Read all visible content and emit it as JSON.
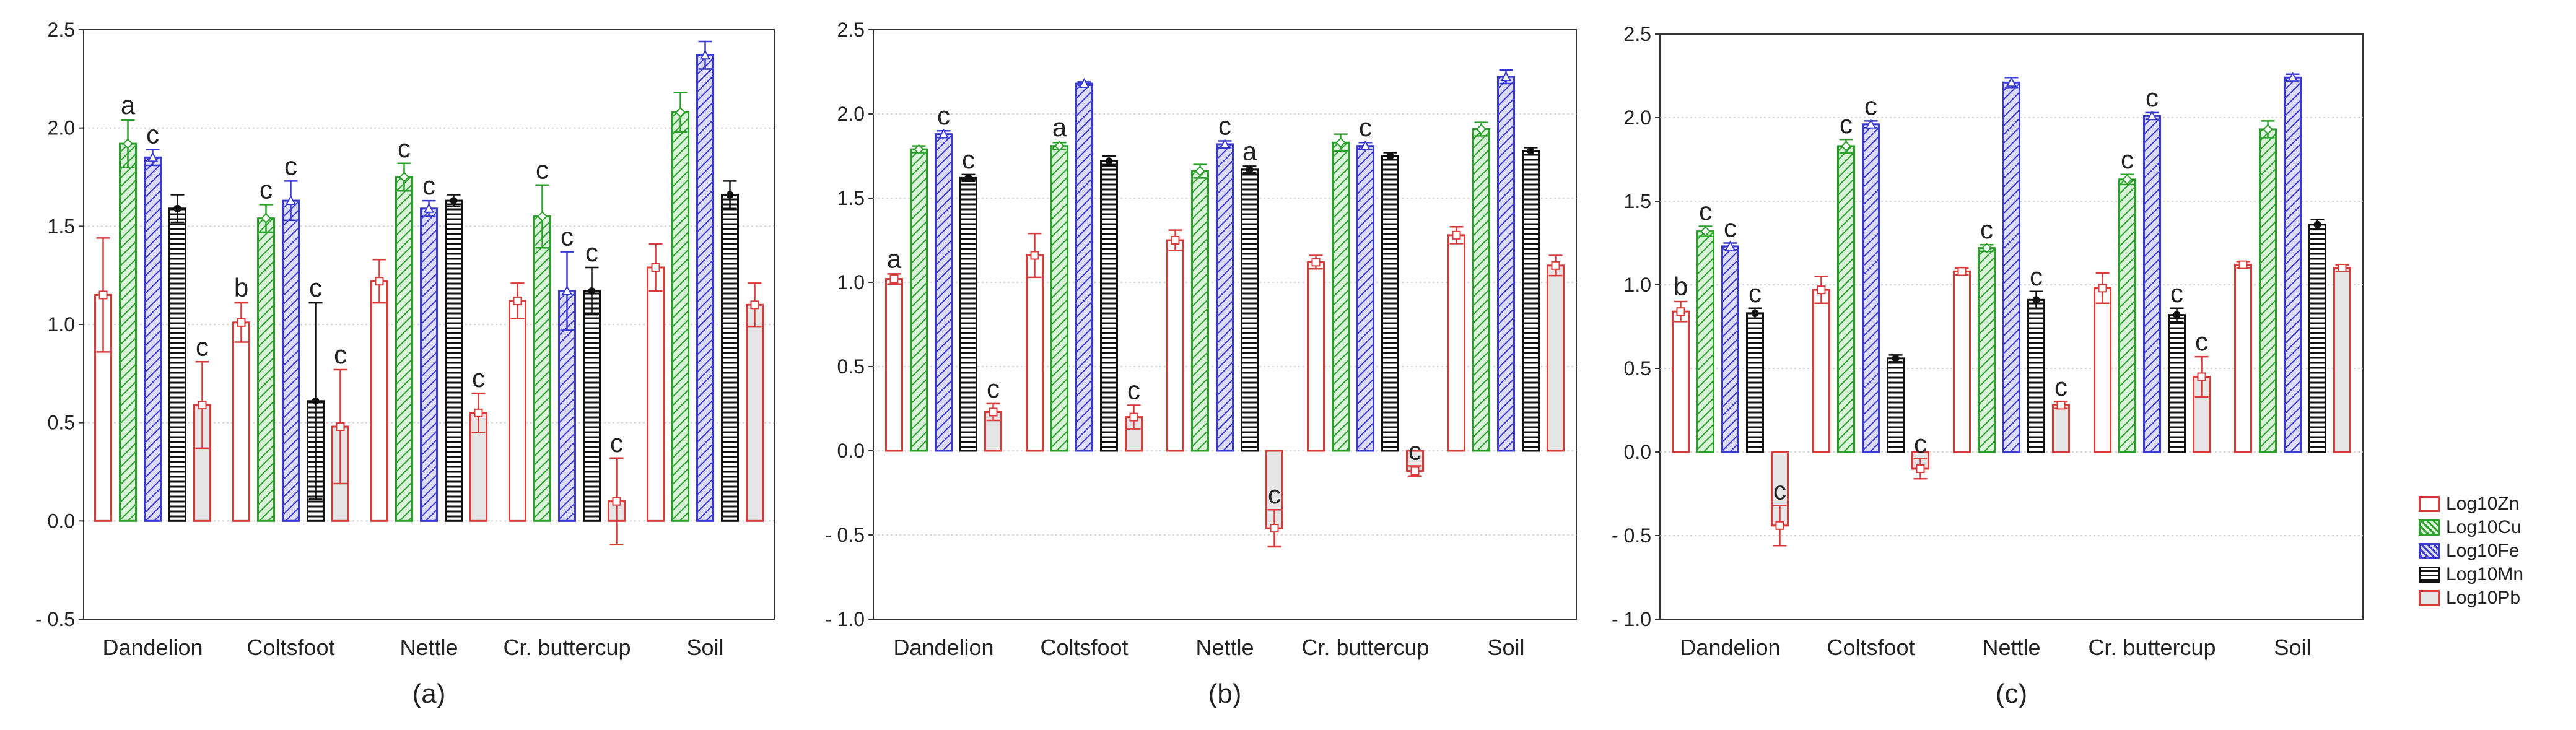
{
  "series_styles": [
    {
      "name": "Log10Zn",
      "stroke": "#d93a3a",
      "fill": "#ffffff",
      "pattern": "none",
      "marker": "square"
    },
    {
      "name": "Log10Cu",
      "stroke": "#2aa02a",
      "fill": "#2aa02a",
      "pattern": "diag",
      "marker": "diamond"
    },
    {
      "name": "Log10Fe",
      "stroke": "#3a3ad0",
      "fill": "#3a3ad0",
      "pattern": "diag",
      "marker": "triangle"
    },
    {
      "name": "Log10Mn",
      "stroke": "#111111",
      "fill": "#111111",
      "pattern": "horiz",
      "marker": "circle"
    },
    {
      "name": "Log10Pb",
      "stroke": "#d93a3a",
      "fill": "#e6e6e6",
      "pattern": "none",
      "marker": "square"
    }
  ],
  "legend": [
    "Log10Zn",
    "Log10Cu",
    "Log10Fe",
    "Log10Mn",
    "Log10Pb"
  ],
  "chart_data": [
    {
      "type": "bar",
      "panel_label": "(a)",
      "categories": [
        "Dandelion",
        "Coltsfoot",
        "Nettle",
        "Cr. buttercup",
        "Soil"
      ],
      "ylim": [
        -0.5,
        2.5
      ],
      "yticks": [
        -0.5,
        0.0,
        0.5,
        1.0,
        1.5,
        2.0,
        2.5
      ],
      "ytick_labels": [
        "- 0.5",
        "0.0",
        "0.5",
        "1.0",
        "1.5",
        "2.0",
        "2.5"
      ],
      "grid": true,
      "series": [
        {
          "name": "Log10Zn",
          "values": [
            1.15,
            1.01,
            1.22,
            1.12,
            1.29
          ],
          "errors": [
            0.29,
            0.1,
            0.11,
            0.09,
            0.12
          ],
          "labels": [
            "",
            "b",
            "",
            "",
            ""
          ]
        },
        {
          "name": "Log10Cu",
          "values": [
            1.92,
            1.54,
            1.75,
            1.55,
            2.08
          ],
          "errors": [
            0.12,
            0.07,
            0.07,
            0.16,
            0.1
          ],
          "labels": [
            "a",
            "c",
            "c",
            "c",
            ""
          ]
        },
        {
          "name": "Log10Fe",
          "values": [
            1.85,
            1.63,
            1.59,
            1.17,
            2.37
          ],
          "errors": [
            0.04,
            0.1,
            0.04,
            0.2,
            0.07
          ],
          "labels": [
            "c",
            "c",
            "c",
            "c",
            ""
          ]
        },
        {
          "name": "Log10Mn",
          "values": [
            1.59,
            0.61,
            1.63,
            1.17,
            1.66
          ],
          "errors": [
            0.07,
            0.5,
            0.03,
            0.12,
            0.07
          ],
          "labels": [
            "",
            "c",
            "",
            "c",
            ""
          ]
        },
        {
          "name": "Log10Pb",
          "values": [
            0.59,
            0.48,
            0.55,
            0.1,
            1.1
          ],
          "errors": [
            0.22,
            0.29,
            0.1,
            0.22,
            0.11
          ],
          "labels": [
            "c",
            "c",
            "c",
            "c",
            ""
          ]
        }
      ]
    },
    {
      "type": "bar",
      "panel_label": "(b)",
      "categories": [
        "Dandelion",
        "Coltsfoot",
        "Nettle",
        "Cr. buttercup",
        "Soil"
      ],
      "ylim": [
        -1.0,
        2.5
      ],
      "yticks": [
        -1.0,
        -0.5,
        0.0,
        0.5,
        1.0,
        1.5,
        2.0,
        2.5
      ],
      "ytick_labels": [
        "- 1.0",
        "- 0.5",
        "0.0",
        "0.5",
        "1.0",
        "1.5",
        "2.0",
        "2.5"
      ],
      "grid": true,
      "series": [
        {
          "name": "Log10Zn",
          "values": [
            1.02,
            1.16,
            1.25,
            1.12,
            1.28
          ],
          "errors": [
            0.03,
            0.13,
            0.06,
            0.04,
            0.05
          ],
          "labels": [
            "a",
            "",
            "",
            "",
            ""
          ]
        },
        {
          "name": "Log10Cu",
          "values": [
            1.79,
            1.81,
            1.66,
            1.83,
            1.91
          ],
          "errors": [
            0.02,
            0.02,
            0.04,
            0.05,
            0.04
          ],
          "labels": [
            "",
            "a",
            "",
            "",
            ""
          ]
        },
        {
          "name": "Log10Fe",
          "values": [
            1.88,
            2.18,
            1.82,
            1.81,
            2.22
          ],
          "errors": [
            0.02,
            0.01,
            0.02,
            0.02,
            0.04
          ],
          "labels": [
            "c",
            "",
            "c",
            "c",
            ""
          ]
        },
        {
          "name": "Log10Mn",
          "values": [
            1.62,
            1.72,
            1.67,
            1.75,
            1.78
          ],
          "errors": [
            0.02,
            0.03,
            0.02,
            0.02,
            0.02
          ],
          "labels": [
            "c",
            "",
            "a",
            "",
            ""
          ]
        },
        {
          "name": "Log10Pb",
          "values": [
            0.23,
            0.2,
            -0.46,
            -0.12,
            1.1
          ],
          "errors": [
            0.05,
            0.07,
            0.11,
            0.03,
            0.06
          ],
          "labels": [
            "c",
            "c",
            "c",
            "c",
            ""
          ]
        }
      ]
    },
    {
      "type": "bar",
      "panel_label": "(c)",
      "categories": [
        "Dandelion",
        "Coltsfoot",
        "Nettle",
        "Cr. buttercup",
        "Soil"
      ],
      "ylim": [
        -1.0,
        2.5
      ],
      "yticks": [
        -1.0,
        -0.5,
        0.0,
        0.5,
        1.0,
        1.5,
        2.0,
        2.5
      ],
      "ytick_labels": [
        "- 1.0",
        "- 0.5",
        "0.0",
        "0.5",
        "1.0",
        "1.5",
        "2.0",
        "2.5"
      ],
      "grid": true,
      "series": [
        {
          "name": "Log10Zn",
          "values": [
            0.84,
            0.97,
            1.08,
            0.98,
            1.12
          ],
          "errors": [
            0.06,
            0.08,
            0.02,
            0.09,
            0.02
          ],
          "labels": [
            "b",
            "",
            "",
            "",
            ""
          ]
        },
        {
          "name": "Log10Cu",
          "values": [
            1.32,
            1.83,
            1.22,
            1.63,
            1.93
          ],
          "errors": [
            0.03,
            0.04,
            0.02,
            0.03,
            0.05
          ],
          "labels": [
            "c",
            "c",
            "c",
            "c",
            ""
          ]
        },
        {
          "name": "Log10Fe",
          "values": [
            1.23,
            1.96,
            2.21,
            2.01,
            2.24
          ],
          "errors": [
            0.02,
            0.02,
            0.03,
            0.02,
            0.02
          ],
          "labels": [
            "c",
            "c",
            "",
            "c",
            ""
          ]
        },
        {
          "name": "Log10Mn",
          "values": [
            0.83,
            0.56,
            0.91,
            0.82,
            1.36
          ],
          "errors": [
            0.03,
            0.02,
            0.05,
            0.04,
            0.03
          ],
          "labels": [
            "c",
            "",
            "c",
            "c",
            ""
          ]
        },
        {
          "name": "Log10Pb",
          "values": [
            -0.44,
            -0.1,
            0.28,
            0.45,
            1.1
          ],
          "errors": [
            0.12,
            0.06,
            0.02,
            0.12,
            0.02
          ],
          "labels": [
            "c",
            "c",
            "c",
            "c",
            ""
          ]
        }
      ]
    }
  ]
}
